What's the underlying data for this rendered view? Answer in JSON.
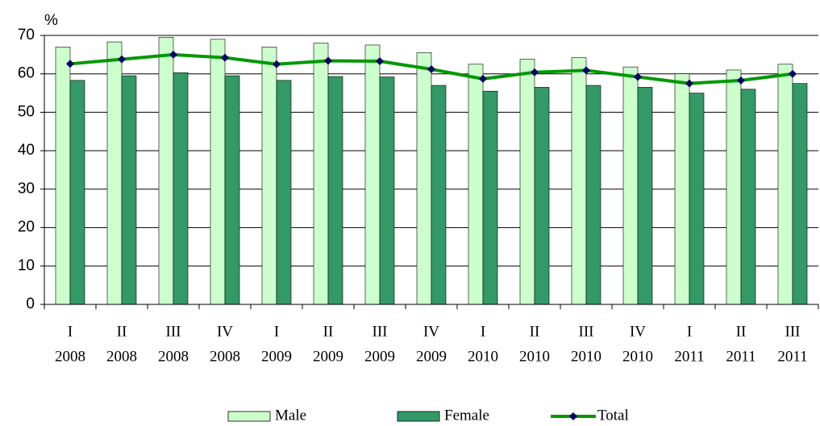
{
  "chart_data": {
    "type": "bar_line",
    "y_label": "%",
    "categories": [
      [
        "I",
        "2008"
      ],
      [
        "II",
        "2008"
      ],
      [
        "III",
        "2008"
      ],
      [
        "IV",
        "2008"
      ],
      [
        "I",
        "2009"
      ],
      [
        "II",
        "2009"
      ],
      [
        "III",
        "2009"
      ],
      [
        "IV",
        "2009"
      ],
      [
        "I",
        "2010"
      ],
      [
        "II",
        "2010"
      ],
      [
        "III",
        "2010"
      ],
      [
        "IV",
        "2010"
      ],
      [
        "I",
        "2011"
      ],
      [
        "II",
        "2011"
      ],
      [
        "III",
        "2011"
      ]
    ],
    "series": [
      {
        "name": "Male",
        "type": "bar",
        "color": "#ccffcc",
        "values": [
          67,
          68.3,
          69.5,
          69,
          67,
          68,
          67.5,
          65.5,
          62.5,
          63.8,
          64.2,
          61.8,
          60,
          61,
          62.5
        ]
      },
      {
        "name": "Female",
        "type": "bar",
        "color": "#339966",
        "values": [
          58.3,
          59.5,
          60.3,
          59.5,
          58.3,
          59.3,
          59.2,
          57,
          55.5,
          56.5,
          57,
          56.5,
          55,
          56,
          57.5
        ]
      },
      {
        "name": "Total",
        "type": "line",
        "color": "#009900",
        "marker_color": "#000066",
        "values": [
          62.6,
          63.8,
          65,
          64.2,
          62.5,
          63.4,
          63.3,
          61.2,
          58.7,
          60.4,
          60.9,
          59.2,
          57.5,
          58.3,
          60
        ]
      }
    ],
    "ylim": [
      0,
      70
    ],
    "yticks": [
      0,
      10,
      20,
      30,
      40,
      50,
      60,
      70
    ],
    "grid": true,
    "legend": "bottom"
  }
}
